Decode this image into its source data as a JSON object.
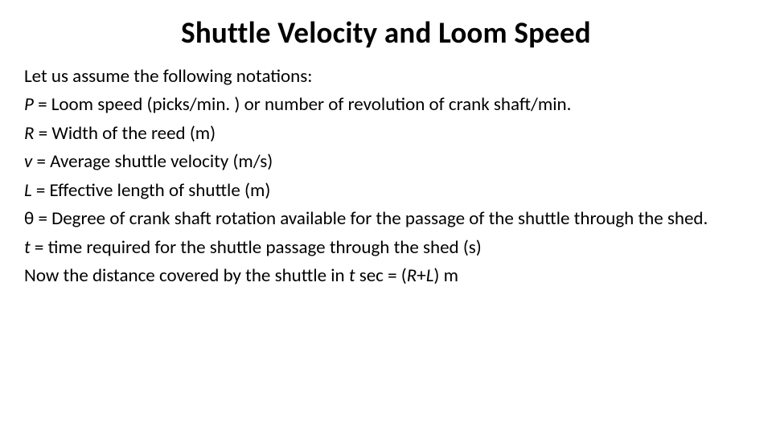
{
  "title": "Shuttle Velocity and Loom Speed",
  "lines": {
    "l0": "Let us assume the following notations:",
    "p_sym": "P",
    "p_def": " = Loom speed (picks/min. ) or number of revolution of crank shaft/min.",
    "r_sym": "R",
    "r_def": " = Width of the reed (m)",
    "v_sym": "v",
    "v_def": " = Average shuttle velocity (m/s)",
    "l_sym": "L",
    "l_def": " = Effective length of shuttle (m)",
    "th_sym": "θ ",
    "th_def": " = Degree of crank shaft rotation available for the passage of the shuttle through the shed.",
    "t_sym": "t",
    "t_def": " = time required for the shuttle passage through the shed (s)",
    "last_a": "Now the distance covered by the shuttle in ",
    "last_t": "t",
    "last_b": " sec = (",
    "last_r": "R",
    "last_plus": "+",
    "last_l": "L",
    "last_c": ") m"
  },
  "colors": {
    "background": "#ffffff",
    "text": "#000000"
  },
  "typography": {
    "title_fontsize": 37,
    "body_fontsize": 23,
    "title_weight": 700
  }
}
